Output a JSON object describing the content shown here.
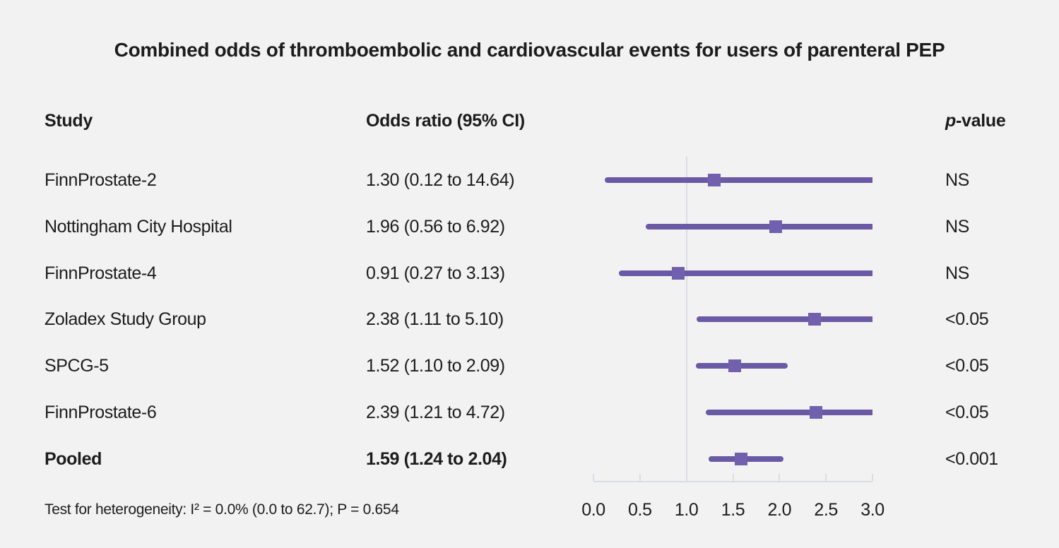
{
  "title": "Combined odds of thromboembolic and cardiovascular events for users of parenteral PEP",
  "header": {
    "study": "Study",
    "odds_ratio": "Odds ratio (95% CI)",
    "p_italic": "p",
    "p_rest": "-value"
  },
  "footer": "Test for heterogeneity: I² = 0.0% (0.0 to 62.7); P = 0.654",
  "colors": {
    "background": "#f2f2f2",
    "text": "#1c1c1c",
    "ci_line": "#6a5aa6",
    "marker": "#7060ad",
    "axis_gray": "#d9dde2"
  },
  "chart_data": {
    "type": "forest",
    "title": "Combined odds of thromboembolic and cardiovascular events for users of parenteral PEP",
    "x_axis": {
      "ticks": [
        0.0,
        0.5,
        1.0,
        1.5,
        2.0,
        2.5,
        3.0
      ],
      "tick_labels": [
        "0.0",
        "0.5",
        "1.0",
        "1.5",
        "2.0",
        "2.5",
        "3.0"
      ],
      "xlim": [
        0,
        3
      ],
      "reference_line": 1.0
    },
    "rows": [
      {
        "study": "FinnProstate-2",
        "or": 1.3,
        "ci_low": 0.12,
        "ci_high": 14.64,
        "or_text": "1.30 (0.12 to 14.64)",
        "p": "NS",
        "bold": false
      },
      {
        "study": "Nottingham City Hospital",
        "or": 1.96,
        "ci_low": 0.56,
        "ci_high": 6.92,
        "or_text": "1.96 (0.56 to 6.92)",
        "p": "NS",
        "bold": false
      },
      {
        "study": "FinnProstate-4",
        "or": 0.91,
        "ci_low": 0.27,
        "ci_high": 3.13,
        "or_text": "0.91 (0.27 to 3.13)",
        "p": "NS",
        "bold": false
      },
      {
        "study": "Zoladex Study Group",
        "or": 2.38,
        "ci_low": 1.11,
        "ci_high": 5.1,
        "or_text": "2.38 (1.11 to 5.10)",
        "p": "<0.05",
        "bold": false
      },
      {
        "study": "SPCG-5",
        "or": 1.52,
        "ci_low": 1.1,
        "ci_high": 2.09,
        "or_text": "1.52 (1.10 to 2.09)",
        "p": "<0.05",
        "bold": false
      },
      {
        "study": "FinnProstate-6",
        "or": 2.39,
        "ci_low": 1.21,
        "ci_high": 4.72,
        "or_text": "2.39 (1.21 to 4.72)",
        "p": "<0.05",
        "bold": false
      },
      {
        "study": "Pooled",
        "or": 1.59,
        "ci_low": 1.24,
        "ci_high": 2.04,
        "or_text": "1.59 (1.24 to 2.04)",
        "p": "<0.001",
        "bold": true
      }
    ]
  }
}
